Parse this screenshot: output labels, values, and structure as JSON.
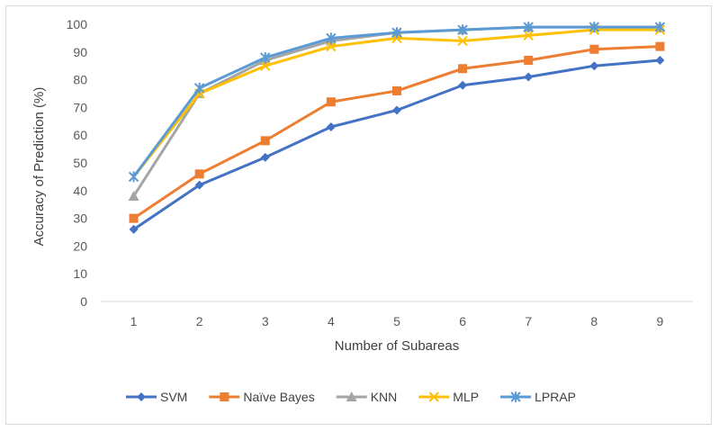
{
  "chart_data": {
    "type": "line",
    "title": "",
    "xlabel": "Number of Subareas",
    "ylabel": "Accuracy of  Prediction (%)",
    "ylim": [
      0,
      100
    ],
    "yticks": [
      0,
      10,
      20,
      30,
      40,
      50,
      60,
      70,
      80,
      90,
      100
    ],
    "categories": [
      "1",
      "2",
      "3",
      "4",
      "5",
      "6",
      "7",
      "8",
      "9"
    ],
    "grid": false,
    "legend_position": "bottom",
    "series": [
      {
        "name": "SVM",
        "color": "#4472c4",
        "marker": "diamond",
        "values": [
          26,
          42,
          52,
          63,
          69,
          78,
          81,
          85,
          87
        ]
      },
      {
        "name": "Naïve Bayes",
        "color": "#ed7d31",
        "marker": "square",
        "values": [
          30,
          46,
          58,
          72,
          76,
          84,
          87,
          91,
          92
        ]
      },
      {
        "name": "KNN",
        "color": "#a5a5a5",
        "marker": "triangle",
        "values": [
          38,
          75,
          87,
          94,
          97,
          98,
          99,
          99,
          99
        ]
      },
      {
        "name": "MLP",
        "color": "#ffc000",
        "marker": "x",
        "values": [
          45,
          75,
          85,
          92,
          95,
          94,
          96,
          98,
          98
        ]
      },
      {
        "name": "LPRAP",
        "color": "#5b9bd5",
        "marker": "star",
        "values": [
          45,
          77,
          88,
          95,
          97,
          98,
          99,
          99,
          99
        ]
      }
    ]
  }
}
